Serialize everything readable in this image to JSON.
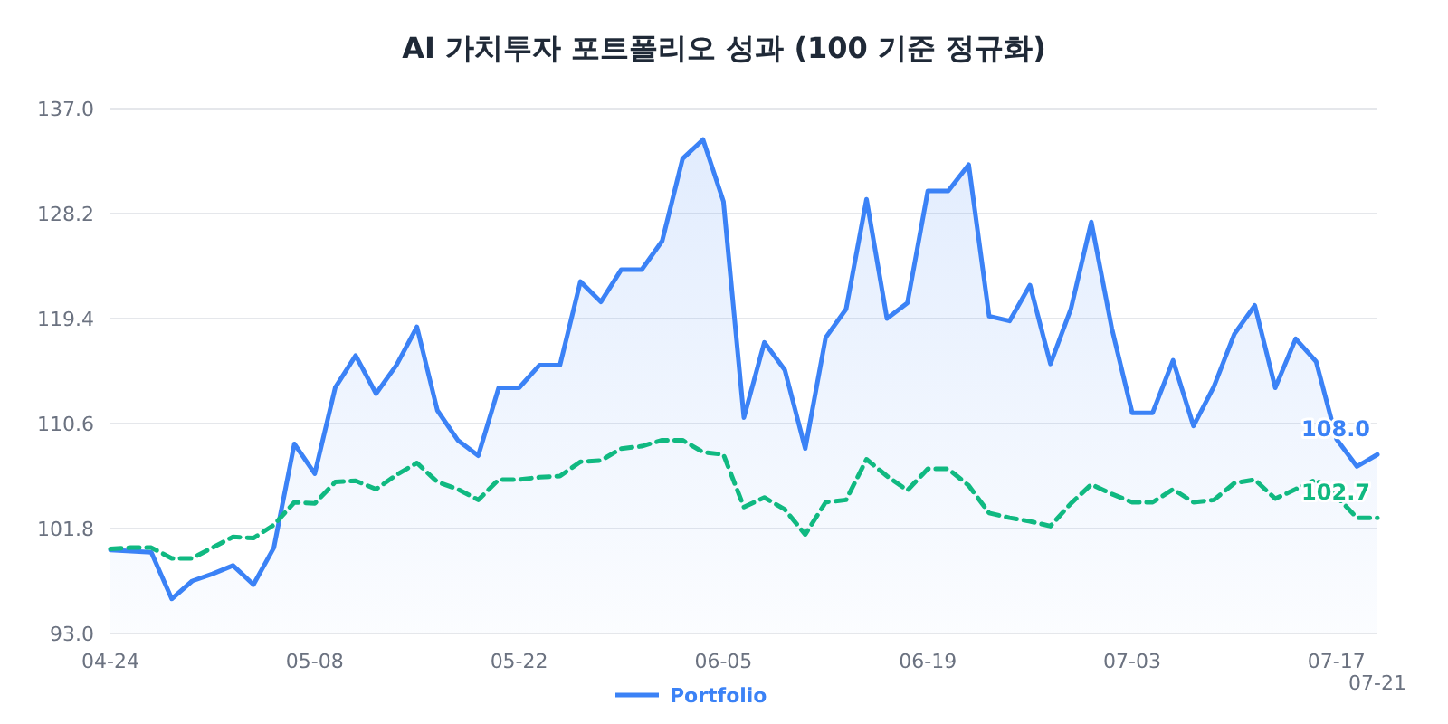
{
  "chart_data": {
    "type": "line",
    "title": "AI 가치투자 포트폴리오 성과 (100 기준 정규화)",
    "categories": [
      "04-24",
      null,
      null,
      null,
      null,
      null,
      null,
      null,
      null,
      null,
      "05-08",
      null,
      null,
      null,
      null,
      null,
      null,
      null,
      null,
      null,
      "05-22",
      null,
      null,
      null,
      null,
      null,
      null,
      null,
      null,
      null,
      "06-05",
      null,
      null,
      null,
      null,
      null,
      null,
      null,
      null,
      null,
      "06-19",
      null,
      null,
      null,
      null,
      null,
      null,
      null,
      null,
      null,
      "07-03",
      null,
      null,
      null,
      null,
      null,
      null,
      null,
      null,
      null,
      "07-17",
      null,
      "07-21"
    ],
    "series": [
      {
        "name": "Portfolio",
        "type": "area",
        "color": "#3b82f6",
        "line_style": "solid",
        "values": [
          100.0,
          99.9,
          99.8,
          95.9,
          97.4,
          98.0,
          98.7,
          97.1,
          100.2,
          108.9,
          106.4,
          113.6,
          116.3,
          113.1,
          115.5,
          118.7,
          111.7,
          109.2,
          107.9,
          113.6,
          113.6,
          115.5,
          115.5,
          122.5,
          120.8,
          123.5,
          123.5,
          125.9,
          132.8,
          134.4,
          129.2,
          111.1,
          117.4,
          115.1,
          108.5,
          117.8,
          120.2,
          129.4,
          119.4,
          120.7,
          130.1,
          130.1,
          132.3,
          119.6,
          119.2,
          122.2,
          115.6,
          120.2,
          127.5,
          118.6,
          111.5,
          111.5,
          115.9,
          110.4,
          113.7,
          118.1,
          120.5,
          113.6,
          117.7,
          115.8,
          109.3,
          107.0,
          108.0
        ],
        "value_labels": [
          null,
          null,
          null,
          null,
          null,
          null,
          null,
          null,
          null,
          null,
          null,
          null,
          null,
          null,
          null,
          null,
          null,
          null,
          null,
          null,
          null,
          null,
          null,
          null,
          null,
          null,
          null,
          null,
          null,
          null,
          null,
          null,
          null,
          null,
          null,
          null,
          null,
          null,
          null,
          null,
          null,
          null,
          null,
          null,
          null,
          null,
          null,
          null,
          null,
          null,
          null,
          null,
          null,
          null,
          null,
          null,
          null,
          null,
          null,
          null,
          null,
          null,
          "108.0"
        ]
      },
      {
        "color": "#10b981",
        "line_style": "dashed",
        "values": [
          100.1,
          100.2,
          100.2,
          99.3,
          99.3,
          100.2,
          101.1,
          101.0,
          102.1,
          104.0,
          103.9,
          105.7,
          105.8,
          105.1,
          106.3,
          107.3,
          105.7,
          105.1,
          104.2,
          105.9,
          105.9,
          106.1,
          106.2,
          107.4,
          107.5,
          108.5,
          108.7,
          109.2,
          109.2,
          108.2,
          108.0,
          103.6,
          104.4,
          103.4,
          101.3,
          104.0,
          104.2,
          107.6,
          106.2,
          105.0,
          106.8,
          106.8,
          105.4,
          103.1,
          102.7,
          102.4,
          102.0,
          103.9,
          105.5,
          104.7,
          104.0,
          104.0,
          105.1,
          104.0,
          104.2,
          105.6,
          105.9,
          104.3,
          105.1,
          105.9,
          104.5,
          102.7,
          102.7
        ],
        "value_labels": [
          null,
          null,
          null,
          null,
          null,
          null,
          null,
          null,
          null,
          null,
          null,
          null,
          null,
          null,
          null,
          null,
          null,
          null,
          null,
          null,
          null,
          null,
          null,
          null,
          null,
          null,
          null,
          null,
          null,
          null,
          null,
          null,
          null,
          null,
          null,
          null,
          null,
          null,
          null,
          null,
          null,
          null,
          null,
          null,
          null,
          null,
          null,
          null,
          null,
          null,
          null,
          null,
          null,
          null,
          null,
          null,
          null,
          null,
          null,
          null,
          null,
          null,
          "102.7"
        ]
      }
    ],
    "ylim": [
      93,
      137
    ],
    "yticks": [
      {
        "value": 93,
        "label": "93.0"
      },
      {
        "value": 101.8,
        "label": "101.8"
      },
      {
        "value": 110.6,
        "label": "110.6"
      },
      {
        "value": 119.4,
        "label": "119.4"
      },
      {
        "value": 128.2,
        "label": "128.2"
      },
      {
        "value": 137,
        "label": "137.0"
      }
    ],
    "grid": "y",
    "legend": "bottom",
    "marker": "none"
  }
}
